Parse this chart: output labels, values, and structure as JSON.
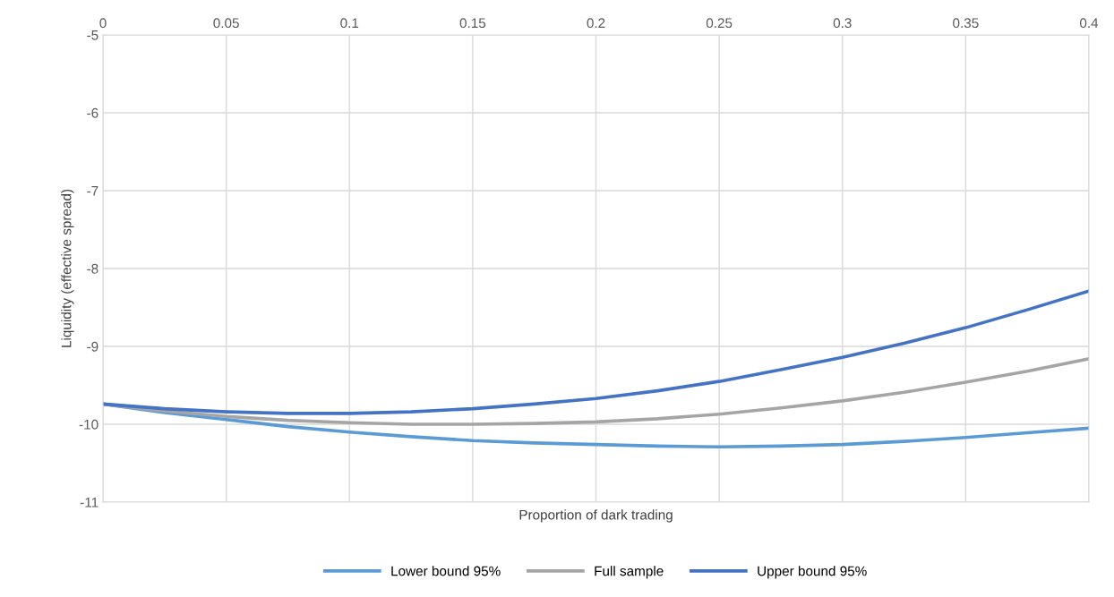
{
  "chart_data": {
    "type": "line",
    "xlabel": "Proportion of dark trading",
    "ylabel": "Liquidity (effective spread)",
    "x": [
      0,
      0.025,
      0.05,
      0.075,
      0.1,
      0.125,
      0.15,
      0.175,
      0.2,
      0.225,
      0.25,
      0.275,
      0.3,
      0.325,
      0.35,
      0.375,
      0.4
    ],
    "series": [
      {
        "name": "Lower bound 95%",
        "color": "#5b9bd5",
        "values": [
          -9.74,
          -9.85,
          -9.94,
          -10.03,
          -10.1,
          -10.16,
          -10.21,
          -10.24,
          -10.26,
          -10.28,
          -10.29,
          -10.28,
          -10.26,
          -10.22,
          -10.17,
          -10.11,
          -10.05
        ]
      },
      {
        "name": "Full sample",
        "color": "#a5a5a5",
        "values": [
          -9.74,
          -9.83,
          -9.9,
          -9.95,
          -9.98,
          -10.0,
          -10.0,
          -9.99,
          -9.97,
          -9.93,
          -9.87,
          -9.79,
          -9.7,
          -9.59,
          -9.46,
          -9.32,
          -9.16
        ]
      },
      {
        "name": "Upper bound 95%",
        "color": "#4472c4",
        "values": [
          -9.74,
          -9.8,
          -9.84,
          -9.86,
          -9.86,
          -9.84,
          -9.8,
          -9.74,
          -9.67,
          -9.57,
          -9.45,
          -9.3,
          -9.14,
          -8.96,
          -8.76,
          -8.53,
          -8.29
        ]
      }
    ],
    "xlim": [
      0,
      0.4
    ],
    "xticks": [
      0,
      0.05,
      0.1,
      0.15,
      0.2,
      0.25,
      0.3,
      0.35,
      0.4
    ],
    "ylim": [
      -11,
      -5
    ],
    "yticks": [
      -11,
      -10,
      -9,
      -8,
      -7,
      -6,
      -5
    ],
    "grid": true,
    "legend": "bottom",
    "line_style": "solid",
    "marker": "none"
  }
}
